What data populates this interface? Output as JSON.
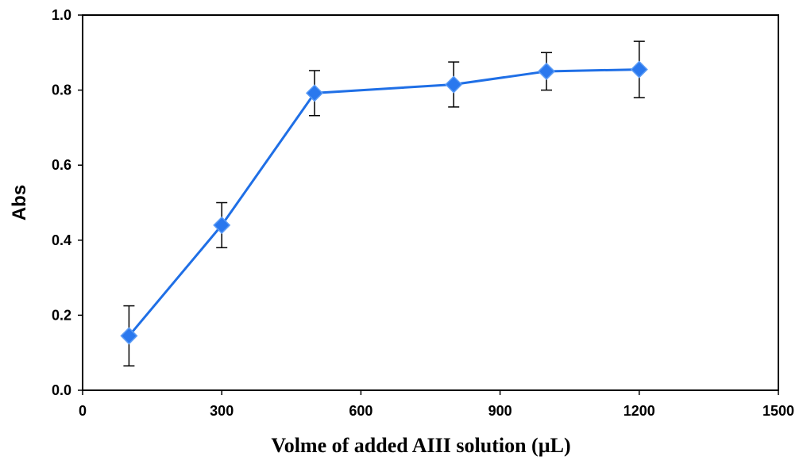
{
  "chart_data": {
    "type": "line",
    "xlabel": "Volme of added AIII solution (µL)",
    "ylabel": "Abs",
    "xlim": [
      0,
      1500
    ],
    "ylim": [
      0.0,
      1.0
    ],
    "x_ticks": [
      "0",
      "300",
      "600",
      "900",
      "1200",
      "1500"
    ],
    "y_ticks": [
      "0.0",
      "0.2",
      "0.4",
      "0.6",
      "0.8",
      "1.0"
    ],
    "grid": false,
    "legend": "none",
    "series": [
      {
        "x": [
          100,
          300,
          500,
          800,
          1000,
          1200
        ],
        "y": [
          0.145,
          0.44,
          0.792,
          0.815,
          0.85,
          0.855
        ],
        "error": [
          0.08,
          0.06,
          0.06,
          0.06,
          0.05,
          0.075
        ],
        "color": "#1f6fe6",
        "marker": "diamond"
      }
    ]
  }
}
